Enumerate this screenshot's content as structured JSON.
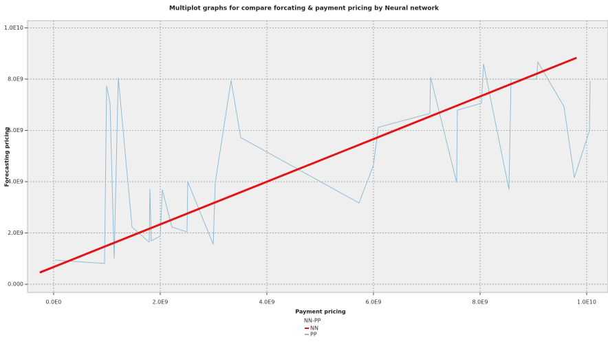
{
  "chart_data": {
    "type": "line",
    "title": "Multiplot graphs for compare forcating & payment pricing by Neural network",
    "x_label": "Payment pricing",
    "y_label": "Forecasting pricing",
    "legend_title": "NN-PP",
    "grid": true,
    "xlim": [
      -490000000,
      10400000000
    ],
    "ylim": [
      -320000000,
      10280000000
    ],
    "xticks": [
      {
        "value": 0,
        "label": "0.0E0"
      },
      {
        "value": 2000000000,
        "label": "2.0E9"
      },
      {
        "value": 4000000000,
        "label": "4.0E9"
      },
      {
        "value": 6000000000,
        "label": "6.0E9"
      },
      {
        "value": 8000000000,
        "label": "8.0E9"
      },
      {
        "value": 10000000000,
        "label": "1.0E10"
      }
    ],
    "yticks": [
      {
        "value": 0,
        "label": "0.000"
      },
      {
        "value": 2000000000,
        "label": "2.0E9"
      },
      {
        "value": 4000000000,
        "label": "4.0E9"
      },
      {
        "value": 6000000000,
        "label": "6.0E9"
      },
      {
        "value": 8000000000,
        "label": "8.0E9"
      },
      {
        "value": 10000000000,
        "label": "1.0E10"
      }
    ],
    "series": [
      {
        "name": "NN",
        "color": "#e01515",
        "width": 3,
        "x": [
          -260000000,
          9810000000
        ],
        "values": [
          456000000,
          8830000000
        ]
      },
      {
        "name": "PP",
        "color": "#8fbcd4",
        "width": 1,
        "x": [
          26000000,
          955000000,
          994000000,
          1058000000,
          1135000000,
          1213000000,
          1471000000,
          1794000000,
          1806000000,
          1832000000,
          2000000000,
          2039000000,
          2219000000,
          2503000000,
          2516000000,
          2994000000,
          3032000000,
          3329000000,
          3510000000,
          5729000000,
          6000000000,
          6090000000,
          7058000000,
          7071000000,
          7561000000,
          7574000000,
          8026000000,
          8065000000,
          8542000000,
          8581000000,
          9058000000,
          9084000000,
          9574000000,
          9768000000,
          10052000000,
          10065000000
        ],
        "values": [
          940000000,
          810000000,
          7730000000,
          7060000000,
          1020000000,
          8050000000,
          2230000000,
          1640000000,
          3700000000,
          1690000000,
          1880000000,
          3680000000,
          2230000000,
          2040000000,
          4000000000,
          1560000000,
          3970000000,
          7950000000,
          5720000000,
          3170000000,
          4640000000,
          6120000000,
          6660000000,
          8080000000,
          3970000000,
          6790000000,
          7060000000,
          8590000000,
          3700000000,
          8000000000,
          8000000000,
          8670000000,
          6930000000,
          4160000000,
          5990000000,
          7920000000
        ]
      }
    ]
  }
}
